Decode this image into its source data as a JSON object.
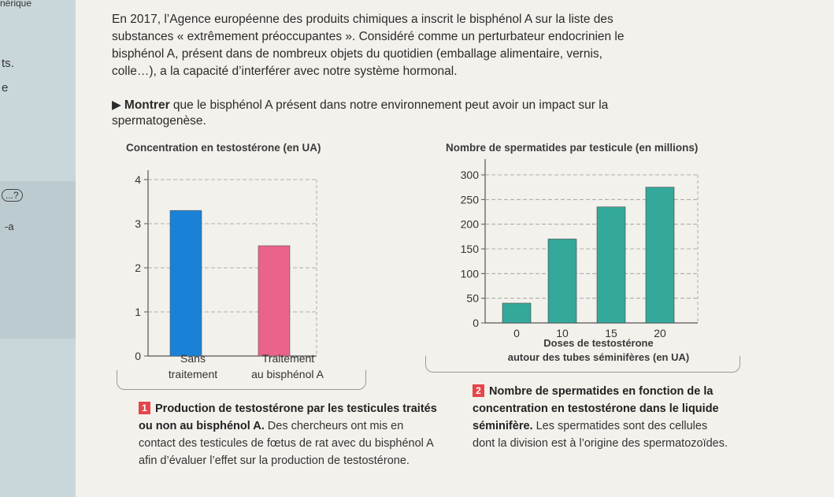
{
  "margin_fragments": [
    "nérique",
    "ts.",
    "e",
    "...?",
    "-a"
  ],
  "intro_text": "En 2017, l’Agence européenne des produits chimiques a inscrit le bisphénol A sur la liste des substances « extrêmement préoccupantes ». Considéré comme un perturbateur endocrinien le bisphénol A, présent dans de nombreux objets du quotidien (emballage alimentaire, vernis, colle…), a la capacité d’interférer avec notre système hormonal.",
  "task": {
    "verb": "Montrer",
    "rest": " que le bisphénol A présent dans notre environnement peut avoir un impact sur la spermatogenèse."
  },
  "chart1": {
    "title": "Concentration en testostérone (en UA)",
    "cat1_line1": "Sans",
    "cat1_line2": "traitement",
    "cat2_line1": "Traitement",
    "cat2_line2": "au bisphénol A",
    "caption_num": "1",
    "caption_bold": "Production de testostérone par les testicules traités ou non au bisphénol A.",
    "caption_text": " Des chercheurs ont mis en contact des testicules de fœtus de rat avec du bisphénol A afin d’évaluer l’effet sur la production de testostérone."
  },
  "chart2": {
    "title": "Nombre de spermatides par testicule (en millions)",
    "xlabel_line1": "Doses de testostérone",
    "xlabel_line2": "autour des tubes séminifères (en UA)",
    "caption_num": "2",
    "caption_bold": "Nombre de spermatides en fonction de la concentration en testostérone dans le liquide séminifère.",
    "caption_text": " Les spermatides sont des cellules dont la division est à l’origine des spermatozoïdes."
  },
  "chart_data": [
    {
      "type": "bar",
      "title": "Concentration en testostérone (en UA)",
      "categories": [
        "Sans traitement",
        "Traitement au bisphénol A"
      ],
      "values": [
        3.3,
        2.5
      ],
      "colors": [
        "#1a82d6",
        "#e9638a"
      ],
      "ylim": [
        0,
        4
      ],
      "yticks": [
        0,
        1,
        2,
        3,
        4
      ],
      "grid": true
    },
    {
      "type": "bar",
      "title": "Nombre de spermatides par testicule (en millions)",
      "xlabel": "Doses de testostérone autour des tubes séminifères (en UA)",
      "categories": [
        "0",
        "10",
        "15",
        "20"
      ],
      "values": [
        40,
        170,
        235,
        275
      ],
      "colors": [
        "#34a89a"
      ],
      "ylim": [
        0,
        300
      ],
      "yticks": [
        0,
        50,
        100,
        150,
        200,
        250,
        300
      ],
      "grid": true
    }
  ]
}
